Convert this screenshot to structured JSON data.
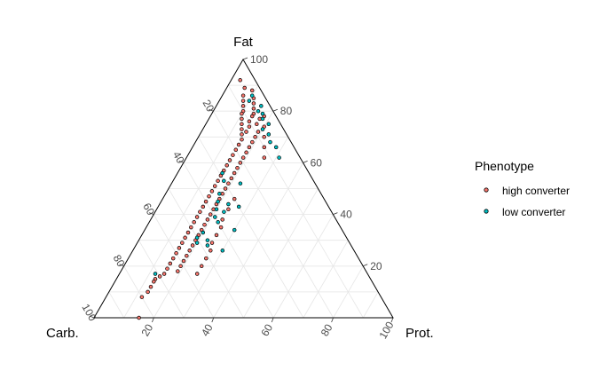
{
  "chart_data": {
    "type": "scatter",
    "subtype": "ternary",
    "axes": {
      "top": "Fat",
      "left": "Carb.",
      "right": "Prot."
    },
    "ticks": [
      "20",
      "40",
      "60",
      "80",
      "100"
    ],
    "range": [
      0,
      100
    ],
    "grid": true,
    "legend": {
      "title": "Phenotype",
      "placement": "right"
    },
    "series": [
      {
        "name": "high converter",
        "color": "#f8766d",
        "points": [
          {
            "fat": 92,
            "carb": 5,
            "prot": 3
          },
          {
            "fat": 89,
            "carb": 5,
            "prot": 6
          },
          {
            "fat": 88,
            "carb": 3,
            "prot": 9
          },
          {
            "fat": 86,
            "carb": 7,
            "prot": 7
          },
          {
            "fat": 85,
            "carb": 4,
            "prot": 11
          },
          {
            "fat": 84,
            "carb": 8,
            "prot": 8
          },
          {
            "fat": 83,
            "carb": 5,
            "prot": 12
          },
          {
            "fat": 82,
            "carb": 9,
            "prot": 9
          },
          {
            "fat": 81,
            "carb": 6,
            "prot": 13
          },
          {
            "fat": 80,
            "carb": 10,
            "prot": 10
          },
          {
            "fat": 79,
            "carb": 7,
            "prot": 14
          },
          {
            "fat": 79,
            "carb": 11,
            "prot": 10
          },
          {
            "fat": 78,
            "carb": 8,
            "prot": 14
          },
          {
            "fat": 77,
            "carb": 12,
            "prot": 11
          },
          {
            "fat": 77,
            "carb": 6,
            "prot": 17
          },
          {
            "fat": 76,
            "carb": 10,
            "prot": 14
          },
          {
            "fat": 75,
            "carb": 13,
            "prot": 12
          },
          {
            "fat": 75,
            "carb": 8,
            "prot": 17
          },
          {
            "fat": 74,
            "carb": 11,
            "prot": 15
          },
          {
            "fat": 73,
            "carb": 14,
            "prot": 13
          },
          {
            "fat": 72,
            "carb": 9,
            "prot": 19
          },
          {
            "fat": 72,
            "carb": 13,
            "prot": 15
          },
          {
            "fat": 71,
            "carb": 15,
            "prot": 14
          },
          {
            "fat": 70,
            "carb": 11,
            "prot": 19
          },
          {
            "fat": 69,
            "carb": 16,
            "prot": 15
          },
          {
            "fat": 68,
            "carb": 13,
            "prot": 19
          },
          {
            "fat": 67,
            "carb": 18,
            "prot": 15
          },
          {
            "fat": 66,
            "carb": 15,
            "prot": 19
          },
          {
            "fat": 65,
            "carb": 20,
            "prot": 15
          },
          {
            "fat": 64,
            "carb": 17,
            "prot": 19
          },
          {
            "fat": 63,
            "carb": 22,
            "prot": 15
          },
          {
            "fat": 62,
            "carb": 19,
            "prot": 19
          },
          {
            "fat": 61,
            "carb": 24,
            "prot": 15
          },
          {
            "fat": 60,
            "carb": 21,
            "prot": 19
          },
          {
            "fat": 59,
            "carb": 26,
            "prot": 15
          },
          {
            "fat": 58,
            "carb": 23,
            "prot": 19
          },
          {
            "fat": 57,
            "carb": 28,
            "prot": 15
          },
          {
            "fat": 56,
            "carb": 25,
            "prot": 19
          },
          {
            "fat": 55,
            "carb": 30,
            "prot": 15
          },
          {
            "fat": 54,
            "carb": 27,
            "prot": 19
          },
          {
            "fat": 53,
            "carb": 32,
            "prot": 15
          },
          {
            "fat": 52,
            "carb": 29,
            "prot": 19
          },
          {
            "fat": 51,
            "carb": 34,
            "prot": 15
          },
          {
            "fat": 50,
            "carb": 31,
            "prot": 19
          },
          {
            "fat": 49,
            "carb": 36,
            "prot": 15
          },
          {
            "fat": 48,
            "carb": 33,
            "prot": 19
          },
          {
            "fat": 47,
            "carb": 38,
            "prot": 15
          },
          {
            "fat": 46,
            "carb": 35,
            "prot": 19
          },
          {
            "fat": 45,
            "carb": 40,
            "prot": 15
          },
          {
            "fat": 44,
            "carb": 37,
            "prot": 19
          },
          {
            "fat": 43,
            "carb": 42,
            "prot": 15
          },
          {
            "fat": 42,
            "carb": 39,
            "prot": 19
          },
          {
            "fat": 41,
            "carb": 44,
            "prot": 15
          },
          {
            "fat": 40,
            "carb": 41,
            "prot": 19
          },
          {
            "fat": 39,
            "carb": 46,
            "prot": 15
          },
          {
            "fat": 38,
            "carb": 43,
            "prot": 19
          },
          {
            "fat": 37,
            "carb": 48,
            "prot": 15
          },
          {
            "fat": 36,
            "carb": 45,
            "prot": 19
          },
          {
            "fat": 35,
            "carb": 50,
            "prot": 15
          },
          {
            "fat": 34,
            "carb": 47,
            "prot": 19
          },
          {
            "fat": 33,
            "carb": 52,
            "prot": 15
          },
          {
            "fat": 32,
            "carb": 49,
            "prot": 19
          },
          {
            "fat": 31,
            "carb": 54,
            "prot": 15
          },
          {
            "fat": 30,
            "carb": 51,
            "prot": 19
          },
          {
            "fat": 29,
            "carb": 56,
            "prot": 15
          },
          {
            "fat": 28,
            "carb": 53,
            "prot": 19
          },
          {
            "fat": 27,
            "carb": 58,
            "prot": 15
          },
          {
            "fat": 26,
            "carb": 55,
            "prot": 19
          },
          {
            "fat": 25,
            "carb": 60,
            "prot": 15
          },
          {
            "fat": 24,
            "carb": 57,
            "prot": 19
          },
          {
            "fat": 23,
            "carb": 62,
            "prot": 15
          },
          {
            "fat": 22,
            "carb": 59,
            "prot": 19
          },
          {
            "fat": 21,
            "carb": 64,
            "prot": 15
          },
          {
            "fat": 20,
            "carb": 61,
            "prot": 19
          },
          {
            "fat": 19,
            "carb": 66,
            "prot": 15
          },
          {
            "fat": 18,
            "carb": 63,
            "prot": 19
          },
          {
            "fat": 17,
            "carb": 68,
            "prot": 15
          },
          {
            "fat": 16,
            "carb": 70,
            "prot": 14
          },
          {
            "fat": 15,
            "carb": 72,
            "prot": 13
          },
          {
            "fat": 14,
            "carb": 73,
            "prot": 13
          },
          {
            "fat": 12,
            "carb": 75,
            "prot": 13
          },
          {
            "fat": 10,
            "carb": 77,
            "prot": 13
          },
          {
            "fat": 8,
            "carb": 80,
            "prot": 12
          },
          {
            "fat": 0,
            "carb": 85,
            "prot": 15
          },
          {
            "fat": 46,
            "carb": 30,
            "prot": 24
          },
          {
            "fat": 42,
            "carb": 34,
            "prot": 24
          },
          {
            "fat": 38,
            "carb": 38,
            "prot": 24
          },
          {
            "fat": 35,
            "carb": 40,
            "prot": 25
          },
          {
            "fat": 32,
            "carb": 43,
            "prot": 25
          },
          {
            "fat": 29,
            "carb": 46,
            "prot": 25
          },
          {
            "fat": 26,
            "carb": 48,
            "prot": 26
          },
          {
            "fat": 23,
            "carb": 51,
            "prot": 26
          },
          {
            "fat": 20,
            "carb": 54,
            "prot": 26
          },
          {
            "fat": 17,
            "carb": 57,
            "prot": 26
          },
          {
            "fat": 78,
            "carb": 4,
            "prot": 18
          },
          {
            "fat": 74,
            "carb": 6,
            "prot": 20
          },
          {
            "fat": 70,
            "carb": 8,
            "prot": 22
          },
          {
            "fat": 66,
            "carb": 10,
            "prot": 24
          },
          {
            "fat": 62,
            "carb": 12,
            "prot": 26
          }
        ]
      },
      {
        "name": "low converter",
        "color": "#00bfc4",
        "points": [
          {
            "fat": 86,
            "carb": 4,
            "prot": 10
          },
          {
            "fat": 84,
            "carb": 6,
            "prot": 10
          },
          {
            "fat": 82,
            "carb": 3,
            "prot": 15
          },
          {
            "fat": 80,
            "carb": 5,
            "prot": 15
          },
          {
            "fat": 79,
            "carb": 4,
            "prot": 17
          },
          {
            "fat": 77,
            "carb": 5,
            "prot": 18
          },
          {
            "fat": 75,
            "carb": 4,
            "prot": 21
          },
          {
            "fat": 73,
            "carb": 7,
            "prot": 20
          },
          {
            "fat": 71,
            "carb": 6,
            "prot": 23
          },
          {
            "fat": 68,
            "carb": 7,
            "prot": 25
          },
          {
            "fat": 66,
            "carb": 6,
            "prot": 28
          },
          {
            "fat": 62,
            "carb": 7,
            "prot": 31
          },
          {
            "fat": 56,
            "carb": 29,
            "prot": 15
          },
          {
            "fat": 53,
            "carb": 30,
            "prot": 17
          },
          {
            "fat": 52,
            "carb": 25,
            "prot": 23
          },
          {
            "fat": 48,
            "carb": 34,
            "prot": 18
          },
          {
            "fat": 45,
            "carb": 36,
            "prot": 19
          },
          {
            "fat": 44,
            "carb": 33,
            "prot": 23
          },
          {
            "fat": 43,
            "carb": 30,
            "prot": 27
          },
          {
            "fat": 42,
            "carb": 38,
            "prot": 20
          },
          {
            "fat": 41,
            "carb": 36,
            "prot": 23
          },
          {
            "fat": 39,
            "carb": 40,
            "prot": 21
          },
          {
            "fat": 37,
            "carb": 40,
            "prot": 23
          },
          {
            "fat": 34,
            "carb": 36,
            "prot": 30
          },
          {
            "fat": 33,
            "carb": 47,
            "prot": 20
          },
          {
            "fat": 31,
            "carb": 50,
            "prot": 19
          },
          {
            "fat": 30,
            "carb": 47,
            "prot": 23
          },
          {
            "fat": 29,
            "carb": 51,
            "prot": 20
          },
          {
            "fat": 28,
            "carb": 48,
            "prot": 24
          },
          {
            "fat": 26,
            "carb": 44,
            "prot": 30
          },
          {
            "fat": 17,
            "carb": 71,
            "prot": 12
          }
        ]
      }
    ]
  }
}
